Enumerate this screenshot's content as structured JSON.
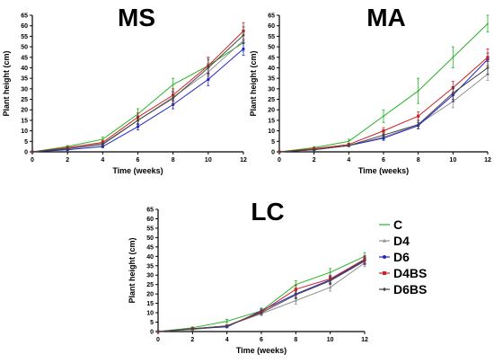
{
  "colors": {
    "C": "#22b422",
    "D4": "#909090",
    "D6": "#2222cc",
    "D4BS": "#cc2222",
    "D6BS": "#444444"
  },
  "legend": {
    "placement": "right-bottom",
    "entries": [
      "C",
      "D4",
      "D6",
      "D4BS",
      "D6BS"
    ]
  },
  "chart_data": [
    {
      "type": "line",
      "title": "MS",
      "xlabel": "Time (weeks)",
      "ylabel": "Plant height (cm)",
      "x": [
        0,
        2,
        4,
        6,
        8,
        10,
        12
      ],
      "xticks": [
        "0",
        "2",
        "4",
        "6",
        "8",
        "10",
        "12"
      ],
      "xlim": [
        0,
        12
      ],
      "ylim": [
        0,
        65
      ],
      "yticks": [
        "0",
        "5",
        "10",
        "15",
        "20",
        "25",
        "30",
        "35",
        "40",
        "45",
        "50",
        "55",
        "60",
        "65"
      ],
      "grid": false,
      "series": [
        {
          "name": "C",
          "values": [
            0,
            2.5,
            6,
            18,
            32,
            41,
            52
          ],
          "err": [
            0,
            0.5,
            1,
            2.5,
            3,
            4,
            4
          ]
        },
        {
          "name": "D4",
          "values": [
            0,
            1.5,
            4,
            15,
            26,
            38,
            53
          ],
          "err": [
            0,
            0.5,
            1,
            2,
            3,
            4,
            4
          ]
        },
        {
          "name": "D6",
          "values": [
            0,
            1,
            2.5,
            12,
            22.5,
            34.5,
            49
          ],
          "err": [
            0,
            0.3,
            0.5,
            1.5,
            2,
            3,
            3
          ]
        },
        {
          "name": "D4BS",
          "values": [
            0,
            2,
            4.5,
            16.5,
            27,
            41,
            57.5
          ],
          "err": [
            0,
            0.5,
            1,
            2,
            3,
            4,
            4
          ]
        },
        {
          "name": "D6BS",
          "values": [
            0,
            1.5,
            3.5,
            15,
            25.5,
            40,
            55.5
          ],
          "err": [
            0,
            0.5,
            1,
            2,
            3,
            4,
            4
          ]
        }
      ]
    },
    {
      "type": "line",
      "title": "MA",
      "xlabel": "Time (weeks)",
      "ylabel": "Plant height (cm)",
      "x": [
        0,
        2,
        4,
        6,
        8,
        10,
        12
      ],
      "xticks": [
        "0",
        "2",
        "4",
        "6",
        "8",
        "10",
        "12"
      ],
      "xlim": [
        0,
        12
      ],
      "ylim": [
        0,
        65
      ],
      "yticks": [
        "0",
        "5",
        "10",
        "15",
        "20",
        "25",
        "30",
        "35",
        "40",
        "45",
        "50",
        "55",
        "60",
        "65"
      ],
      "grid": false,
      "series": [
        {
          "name": "C",
          "values": [
            0,
            2,
            5,
            17,
            29,
            45,
            61
          ],
          "err": [
            0,
            0.5,
            1,
            3,
            6,
            5,
            4
          ]
        },
        {
          "name": "D4",
          "values": [
            0,
            1,
            3,
            7,
            13,
            24,
            37
          ],
          "err": [
            0,
            0.3,
            0.5,
            1,
            2,
            3,
            3
          ]
        },
        {
          "name": "D6",
          "values": [
            0,
            1,
            3,
            6.5,
            12.5,
            27,
            44
          ],
          "err": [
            0,
            0.3,
            0.5,
            1,
            1.5,
            3,
            3
          ]
        },
        {
          "name": "D4BS",
          "values": [
            0,
            1.5,
            3.5,
            10,
            17,
            30.5,
            45
          ],
          "err": [
            0,
            0.5,
            0.5,
            1.5,
            2,
            3,
            4
          ]
        },
        {
          "name": "D6BS",
          "values": [
            0,
            1,
            3,
            8,
            13,
            28,
            40
          ],
          "err": [
            0,
            0.3,
            0.5,
            1,
            2,
            3,
            3
          ]
        }
      ]
    },
    {
      "type": "line",
      "title": "LC",
      "xlabel": "Time (weeks)",
      "ylabel": "Plant height (cm)",
      "x": [
        0,
        2,
        4,
        6,
        8,
        10,
        12
      ],
      "xticks": [
        "0",
        "2",
        "4",
        "6",
        "8",
        "10",
        "12"
      ],
      "xlim": [
        0,
        12
      ],
      "ylim": [
        0,
        65
      ],
      "yticks": [
        "0",
        "5",
        "10",
        "15",
        "20",
        "25",
        "30",
        "35",
        "40",
        "45",
        "50",
        "55",
        "60",
        "65"
      ],
      "grid": false,
      "series": [
        {
          "name": "C",
          "values": [
            0,
            2,
            5.5,
            11,
            25,
            31.5,
            40
          ],
          "err": [
            0,
            0.5,
            1,
            1.5,
            2,
            2,
            2
          ]
        },
        {
          "name": "D4",
          "values": [
            0,
            1,
            3,
            9.5,
            16.5,
            23.5,
            36.5
          ],
          "err": [
            0,
            0.3,
            0.5,
            1,
            2,
            2,
            2
          ]
        },
        {
          "name": "D6",
          "values": [
            0,
            1.5,
            2.5,
            11,
            20,
            27.5,
            38
          ],
          "err": [
            0,
            0.3,
            0.5,
            1,
            2,
            2,
            2
          ]
        },
        {
          "name": "D4BS",
          "values": [
            0,
            1.5,
            3,
            10.5,
            22.5,
            28,
            38.5
          ],
          "err": [
            0,
            0.5,
            0.5,
            1,
            2,
            2,
            2
          ]
        },
        {
          "name": "D6BS",
          "values": [
            0,
            1.5,
            3,
            10,
            19.5,
            27,
            37.5
          ],
          "err": [
            0,
            0.3,
            0.5,
            1,
            2,
            2,
            2
          ]
        }
      ]
    }
  ]
}
